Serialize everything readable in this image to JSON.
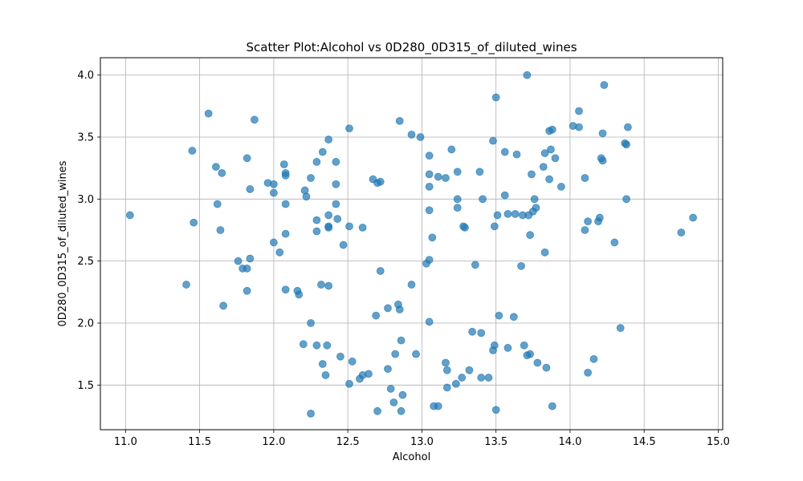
{
  "chart_data": {
    "type": "scatter",
    "title": "Scatter Plot:Alcohol vs 0D280_0D315_of_diluted_wines",
    "xlabel": "Alcohol",
    "ylabel": "0D280_0D315_of_diluted_wines",
    "xlim": [
      10.83,
      15.03
    ],
    "ylim": [
      1.14,
      4.14
    ],
    "xticks": [
      "11.0",
      "11.5",
      "12.0",
      "12.5",
      "13.0",
      "13.5",
      "14.0",
      "14.5",
      "15.0"
    ],
    "yticks": [
      "1.5",
      "2.0",
      "2.5",
      "3.0",
      "3.5",
      "4.0"
    ],
    "grid": true,
    "color": "#1f77b4",
    "points": [
      [
        11.03,
        2.87
      ],
      [
        11.41,
        2.31
      ],
      [
        11.45,
        3.39
      ],
      [
        11.46,
        2.81
      ],
      [
        11.56,
        3.69
      ],
      [
        11.61,
        3.26
      ],
      [
        11.62,
        2.96
      ],
      [
        11.64,
        2.75
      ],
      [
        11.65,
        3.21
      ],
      [
        11.66,
        2.14
      ],
      [
        11.76,
        2.5
      ],
      [
        11.79,
        2.44
      ],
      [
        11.82,
        2.44
      ],
      [
        11.82,
        2.26
      ],
      [
        11.82,
        3.33
      ],
      [
        11.84,
        2.52
      ],
      [
        11.84,
        3.08
      ],
      [
        11.87,
        3.64
      ],
      [
        11.96,
        3.13
      ],
      [
        12.0,
        3.12
      ],
      [
        12.0,
        3.05
      ],
      [
        12.0,
        2.65
      ],
      [
        12.04,
        2.57
      ],
      [
        12.07,
        3.28
      ],
      [
        12.08,
        3.21
      ],
      [
        12.08,
        3.19
      ],
      [
        12.08,
        2.96
      ],
      [
        12.08,
        2.72
      ],
      [
        12.08,
        2.27
      ],
      [
        12.16,
        2.26
      ],
      [
        12.17,
        2.23
      ],
      [
        12.2,
        1.83
      ],
      [
        12.21,
        3.07
      ],
      [
        12.22,
        3.02
      ],
      [
        12.25,
        3.17
      ],
      [
        12.25,
        2.0
      ],
      [
        12.25,
        1.27
      ],
      [
        12.29,
        3.3
      ],
      [
        12.29,
        2.83
      ],
      [
        12.29,
        2.74
      ],
      [
        12.29,
        1.82
      ],
      [
        12.32,
        2.31
      ],
      [
        12.33,
        3.38
      ],
      [
        12.33,
        1.67
      ],
      [
        12.35,
        1.58
      ],
      [
        12.36,
        1.82
      ],
      [
        12.37,
        3.48
      ],
      [
        12.37,
        2.87
      ],
      [
        12.37,
        2.78
      ],
      [
        12.37,
        2.77
      ],
      [
        12.37,
        2.3
      ],
      [
        12.42,
        3.3
      ],
      [
        12.42,
        3.12
      ],
      [
        12.42,
        2.96
      ],
      [
        12.43,
        2.84
      ],
      [
        12.45,
        1.73
      ],
      [
        12.47,
        2.63
      ],
      [
        12.51,
        3.57
      ],
      [
        12.51,
        2.78
      ],
      [
        12.51,
        1.51
      ],
      [
        12.53,
        1.69
      ],
      [
        12.58,
        1.55
      ],
      [
        12.6,
        1.58
      ],
      [
        12.6,
        2.77
      ],
      [
        12.64,
        1.59
      ],
      [
        12.67,
        3.16
      ],
      [
        12.69,
        2.06
      ],
      [
        12.7,
        3.13
      ],
      [
        12.7,
        1.29
      ],
      [
        12.72,
        3.14
      ],
      [
        12.72,
        2.42
      ],
      [
        12.77,
        2.12
      ],
      [
        12.77,
        1.63
      ],
      [
        12.79,
        1.47
      ],
      [
        12.81,
        1.36
      ],
      [
        12.82,
        1.75
      ],
      [
        12.84,
        2.15
      ],
      [
        12.85,
        2.11
      ],
      [
        12.85,
        3.63
      ],
      [
        12.86,
        1.86
      ],
      [
        12.86,
        1.29
      ],
      [
        12.87,
        1.42
      ],
      [
        12.93,
        3.52
      ],
      [
        12.93,
        2.31
      ],
      [
        12.96,
        1.75
      ],
      [
        12.99,
        3.5
      ],
      [
        13.03,
        2.48
      ],
      [
        13.05,
        3.35
      ],
      [
        13.05,
        3.2
      ],
      [
        13.05,
        3.1
      ],
      [
        13.05,
        2.91
      ],
      [
        13.05,
        2.51
      ],
      [
        13.05,
        2.01
      ],
      [
        13.07,
        2.69
      ],
      [
        13.08,
        1.33
      ],
      [
        13.11,
        1.33
      ],
      [
        13.11,
        3.18
      ],
      [
        13.16,
        3.17
      ],
      [
        13.16,
        1.68
      ],
      [
        13.17,
        1.62
      ],
      [
        13.17,
        1.48
      ],
      [
        13.2,
        3.4
      ],
      [
        13.23,
        1.51
      ],
      [
        13.24,
        3.0
      ],
      [
        13.24,
        2.93
      ],
      [
        13.24,
        3.22
      ],
      [
        13.27,
        1.56
      ],
      [
        13.28,
        2.78
      ],
      [
        13.29,
        2.77
      ],
      [
        13.32,
        1.62
      ],
      [
        13.34,
        1.93
      ],
      [
        13.36,
        2.47
      ],
      [
        13.39,
        3.22
      ],
      [
        13.4,
        1.92
      ],
      [
        13.4,
        1.56
      ],
      [
        13.41,
        3.0
      ],
      [
        13.45,
        1.56
      ],
      [
        13.48,
        3.47
      ],
      [
        13.48,
        1.78
      ],
      [
        13.49,
        1.82
      ],
      [
        13.49,
        2.78
      ],
      [
        13.5,
        1.3
      ],
      [
        13.5,
        3.82
      ],
      [
        13.51,
        2.87
      ],
      [
        13.52,
        2.06
      ],
      [
        13.56,
        3.38
      ],
      [
        13.56,
        3.03
      ],
      [
        13.58,
        1.8
      ],
      [
        13.58,
        2.88
      ],
      [
        13.62,
        2.05
      ],
      [
        13.63,
        2.88
      ],
      [
        13.64,
        3.36
      ],
      [
        13.67,
        2.46
      ],
      [
        13.68,
        2.87
      ],
      [
        13.69,
        1.82
      ],
      [
        13.71,
        4.0
      ],
      [
        13.71,
        1.74
      ],
      [
        13.72,
        2.87
      ],
      [
        13.73,
        2.71
      ],
      [
        13.73,
        1.75
      ],
      [
        13.74,
        3.2
      ],
      [
        13.75,
        2.9
      ],
      [
        13.76,
        3.0
      ],
      [
        13.77,
        2.93
      ],
      [
        13.78,
        1.68
      ],
      [
        13.82,
        3.26
      ],
      [
        13.83,
        3.37
      ],
      [
        13.83,
        2.57
      ],
      [
        13.84,
        1.64
      ],
      [
        13.86,
        3.55
      ],
      [
        13.86,
        3.16
      ],
      [
        13.87,
        3.4
      ],
      [
        13.88,
        3.56
      ],
      [
        13.88,
        1.33
      ],
      [
        13.9,
        3.33
      ],
      [
        13.94,
        3.1
      ],
      [
        14.02,
        3.59
      ],
      [
        14.06,
        3.71
      ],
      [
        14.06,
        3.58
      ],
      [
        14.1,
        3.17
      ],
      [
        14.1,
        2.75
      ],
      [
        14.12,
        2.82
      ],
      [
        14.12,
        1.6
      ],
      [
        14.16,
        1.71
      ],
      [
        14.19,
        2.82
      ],
      [
        14.2,
        2.85
      ],
      [
        14.21,
        3.33
      ],
      [
        14.22,
        3.53
      ],
      [
        14.22,
        3.31
      ],
      [
        14.23,
        3.92
      ],
      [
        14.3,
        2.65
      ],
      [
        14.34,
        1.96
      ],
      [
        14.37,
        3.45
      ],
      [
        14.38,
        3.44
      ],
      [
        14.38,
        3.0
      ],
      [
        14.39,
        3.58
      ],
      [
        14.75,
        2.73
      ],
      [
        14.83,
        2.85
      ]
    ]
  }
}
